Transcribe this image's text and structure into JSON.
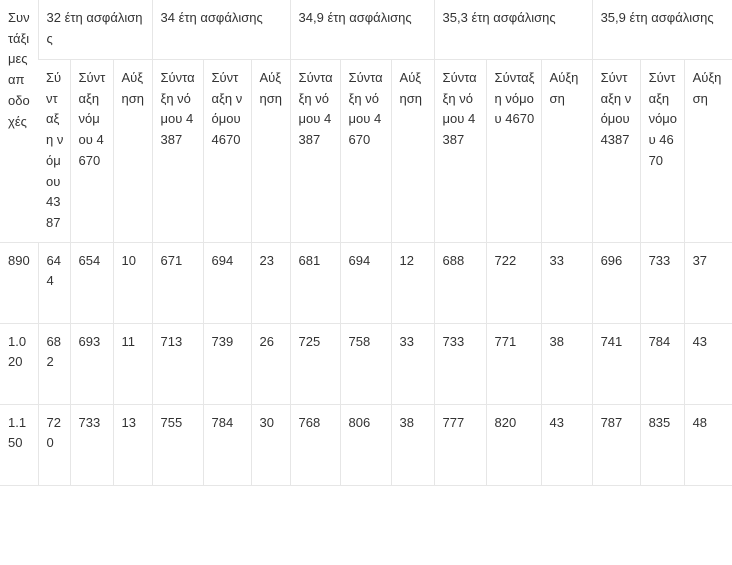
{
  "table": {
    "corner": "Συντάξιμες αποδοχές",
    "groups": [
      "32 έτη ασφάλισης",
      "34 έτη ασφάλισης",
      "34,9 έτη ασφάλισης",
      "35,3 έτη ασφάλισης",
      "35,9 έτη ασφάλισης"
    ],
    "subheaders": [
      [
        "Σύνταξη νόμου 4387",
        "Σύνταξη νόμου 4670",
        "Αύξηση"
      ],
      [
        "Σύνταξη νόμου 4387",
        "Σύνταξη νόμου 4670",
        "Αύξηση"
      ],
      [
        "Σύνταξη νόμου 4387",
        "Σύνταξη νόμου 4670",
        "Αύξηση"
      ],
      [
        "Σύνταξη νόμου 4387",
        "Σύνταξη νόμου 4670",
        "Αύξηση"
      ],
      [
        "Σύνταξη νόμου 4387",
        "Σύνταξη νόμου 4670",
        "Αύξηση"
      ]
    ],
    "rows": [
      [
        "890",
        "644",
        "654",
        "10",
        "671",
        "694",
        "23",
        "681",
        "694",
        "12",
        "688",
        "722",
        "33",
        "696",
        "733",
        "37"
      ],
      [
        "1.020",
        "682",
        "693",
        "11",
        "713",
        "739",
        "26",
        "725",
        "758",
        "33",
        "733",
        "771",
        "38",
        "741",
        "784",
        "43"
      ],
      [
        "1.150",
        "720",
        "733",
        "13",
        "755",
        "784",
        "30",
        "768",
        "806",
        "38",
        "777",
        "820",
        "43",
        "787",
        "835",
        "48"
      ]
    ]
  }
}
